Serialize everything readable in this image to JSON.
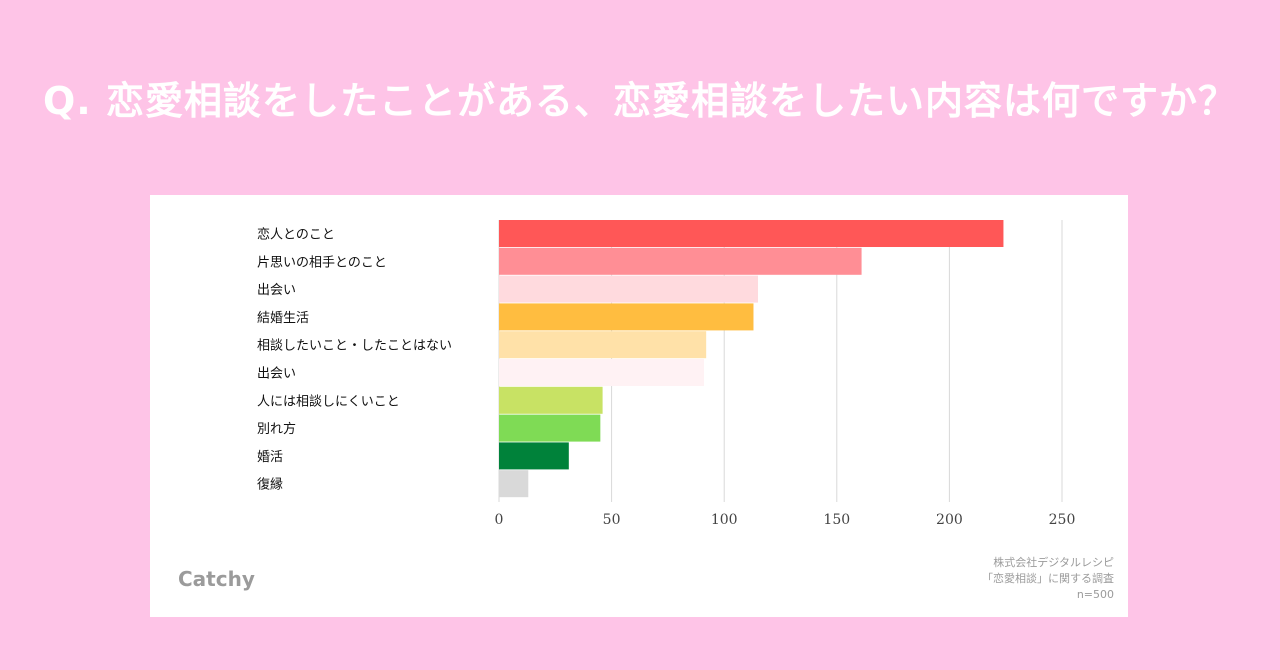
{
  "title": "Q. 恋愛相談をしたことがある、恋愛相談をしたい内容は何ですか？",
  "brand": "Catchy",
  "source": {
    "line1": "株式会社デジタルレシピ",
    "line2": "「恋愛相談」に関する調査",
    "line3": "n=500"
  },
  "chart_data": {
    "type": "bar",
    "orientation": "horizontal",
    "categories": [
      "恋人とのこと",
      "片思いの相手とのこと",
      "出会い",
      "結婚生活",
      "相談したいこと・したことはない",
      "出会い",
      "人には相談しにくいこと",
      "別れ方",
      "婚活",
      "復縁"
    ],
    "values": [
      224,
      161,
      115,
      113,
      92,
      91,
      46,
      45,
      31,
      13
    ],
    "colors": [
      "#FF5757",
      "#FF8E95",
      "#FFDADE",
      "#FFBD40",
      "#FFE1A8",
      "#FFF2F4",
      "#C8E264",
      "#7FDB55",
      "#00823A",
      "#D9D9D9"
    ],
    "xticks": [
      0,
      50,
      100,
      150,
      200,
      250
    ],
    "xlim": [
      0,
      250
    ],
    "grid": true,
    "legend": "none"
  }
}
